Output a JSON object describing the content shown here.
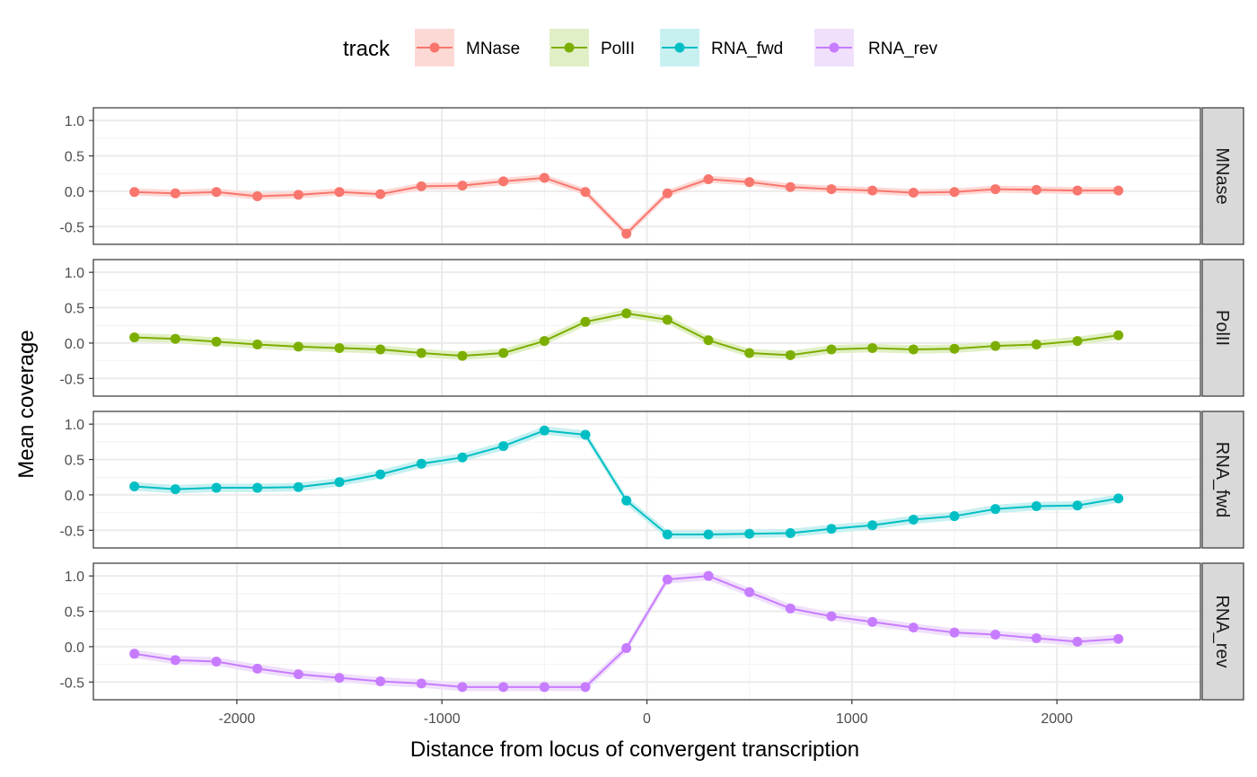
{
  "chart_data": {
    "type": "line",
    "xlabel": "Distance from locus of convergent transcription",
    "ylabel": "Mean coverage",
    "xlim": [
      -2700,
      2700
    ],
    "ylim": [
      -0.75,
      1.18
    ],
    "x_ticks": [
      -2000,
      -1000,
      0,
      1000,
      2000
    ],
    "x_tick_labels": [
      "-2000",
      "-1000",
      "0",
      "1000",
      "2000"
    ],
    "y_ticks": [
      -0.5,
      0.0,
      0.5,
      1.0
    ],
    "y_tick_labels": [
      "-0.5",
      "0.0",
      "0.5",
      "1.0"
    ],
    "grid": true,
    "facets": "rows",
    "legend": {
      "title": "track",
      "position": "top",
      "entries": [
        "MNase",
        "PolII",
        "RNA_fwd",
        "RNA_rev"
      ]
    },
    "x": [
      -2500,
      -2300,
      -2100,
      -1900,
      -1700,
      -1500,
      -1300,
      -1100,
      -900,
      -700,
      -500,
      -300,
      -100,
      100,
      300,
      500,
      700,
      900,
      1100,
      1300,
      1500,
      1700,
      1900,
      2100,
      2300
    ],
    "series": [
      {
        "name": "MNase",
        "color": "#F8766D",
        "band_color": "#FDD9D6",
        "values": [
          -0.01,
          -0.03,
          -0.01,
          -0.07,
          -0.05,
          -0.01,
          -0.04,
          0.07,
          0.08,
          0.14,
          0.19,
          -0.01,
          -0.6,
          -0.03,
          0.17,
          0.13,
          0.06,
          0.03,
          0.01,
          -0.02,
          -0.01,
          0.03,
          0.02,
          0.01,
          0.01
        ],
        "band": 0.05
      },
      {
        "name": "PolII",
        "color": "#7CAE00",
        "band_color": "#E1EFC6",
        "values": [
          0.08,
          0.06,
          0.02,
          -0.02,
          -0.05,
          -0.07,
          -0.09,
          -0.14,
          -0.18,
          -0.14,
          0.03,
          0.3,
          0.42,
          0.33,
          0.04,
          -0.14,
          -0.17,
          -0.09,
          -0.07,
          -0.09,
          -0.08,
          -0.04,
          -0.02,
          0.03,
          0.11
        ],
        "band": 0.06
      },
      {
        "name": "RNA_fwd",
        "color": "#00BFC4",
        "band_color": "#C8F0F1",
        "values": [
          0.12,
          0.08,
          0.1,
          0.1,
          0.11,
          0.18,
          0.29,
          0.44,
          0.53,
          0.69,
          0.91,
          0.85,
          -0.08,
          -0.56,
          -0.56,
          -0.55,
          -0.54,
          -0.48,
          -0.43,
          -0.35,
          -0.3,
          -0.2,
          -0.16,
          -0.15,
          -0.05
        ],
        "band": 0.06
      },
      {
        "name": "RNA_rev",
        "color": "#C77CFF",
        "band_color": "#F0E0FB",
        "values": [
          -0.1,
          -0.19,
          -0.21,
          -0.31,
          -0.39,
          -0.44,
          -0.49,
          -0.52,
          -0.57,
          -0.57,
          -0.57,
          -0.57,
          -0.02,
          0.95,
          1.0,
          0.77,
          0.54,
          0.43,
          0.35,
          0.27,
          0.2,
          0.17,
          0.12,
          0.07,
          0.11
        ],
        "band": 0.06
      }
    ]
  }
}
